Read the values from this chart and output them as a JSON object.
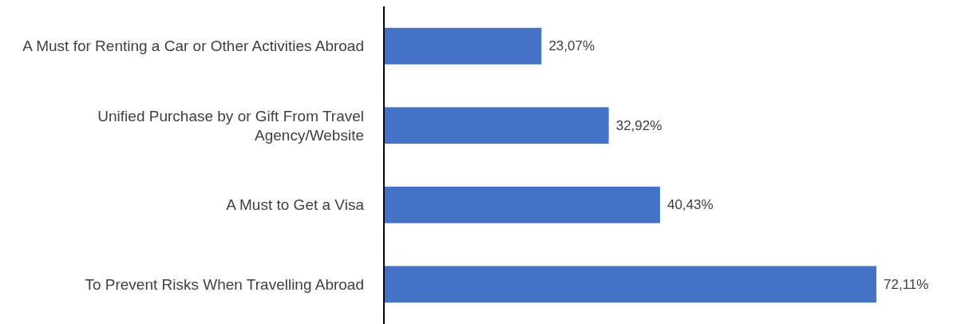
{
  "chart_data": {
    "type": "bar",
    "orientation": "horizontal",
    "categories": [
      "A Must for Renting a Car or Other Activities Abroad",
      "Unified Purchase by or Gift From Travel Agency/Website",
      "A Must to Get a Visa",
      "To Prevent Risks When Travelling Abroad"
    ],
    "values": [
      23.07,
      32.92,
      40.43,
      72.11
    ],
    "value_labels": [
      "23,07%",
      "32,92%",
      "40,43%",
      "72,11%"
    ],
    "color": "#4472c4"
  }
}
